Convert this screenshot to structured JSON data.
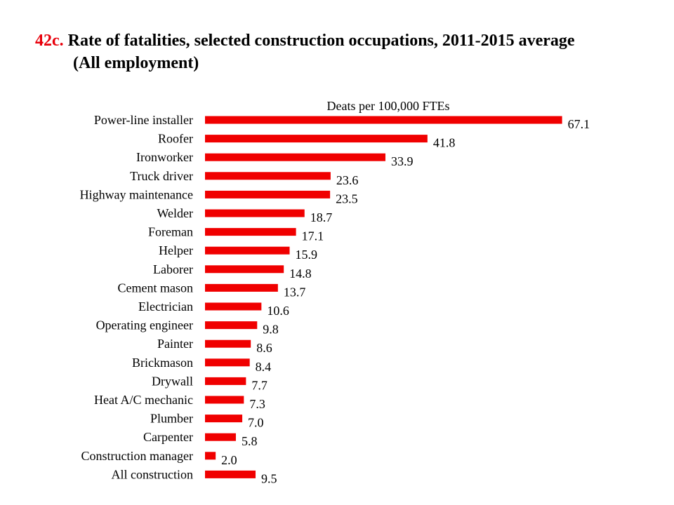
{
  "title": {
    "number": "42c.",
    "line1": "Rate of fatalities, selected construction occupations, 2011-2015 average",
    "line2": "(All employment)"
  },
  "colors": {
    "bar": "#f00000",
    "title_number": "#e8000b"
  },
  "chart_data": {
    "type": "bar",
    "orientation": "horizontal",
    "title": "Rate of fatalities, selected construction occupations, 2011-2015 average (All employment)",
    "xlabel": "Deats per 100,000 FTEs",
    "ylabel": "",
    "xlim": [
      0,
      70
    ],
    "grid": false,
    "categories": [
      "Power-line installer",
      "Roofer",
      "Ironworker",
      "Truck driver",
      "Highway maintenance",
      "Welder",
      "Foreman",
      "Helper",
      "Laborer",
      "Cement mason",
      "Electrician",
      "Operating engineer",
      "Painter",
      "Brickmason",
      "Drywall",
      "Heat A/C mechanic",
      "Plumber",
      "Carpenter",
      "Construction manager",
      "All construction"
    ],
    "values": [
      67.1,
      41.8,
      33.9,
      23.6,
      23.5,
      18.7,
      17.1,
      15.9,
      14.8,
      13.7,
      10.6,
      9.8,
      8.6,
      8.4,
      7.7,
      7.3,
      7.0,
      5.8,
      2.0,
      9.5
    ],
    "value_labels": [
      "67.1",
      "41.8",
      "33.9",
      "23.6",
      "23.5",
      "18.7",
      "17.1",
      "15.9",
      "14.8",
      "13.7",
      "10.6",
      "9.8",
      "8.6",
      "8.4",
      "7.7",
      "7.3",
      "7.0",
      "5.8",
      "2.0",
      "9.5"
    ]
  }
}
